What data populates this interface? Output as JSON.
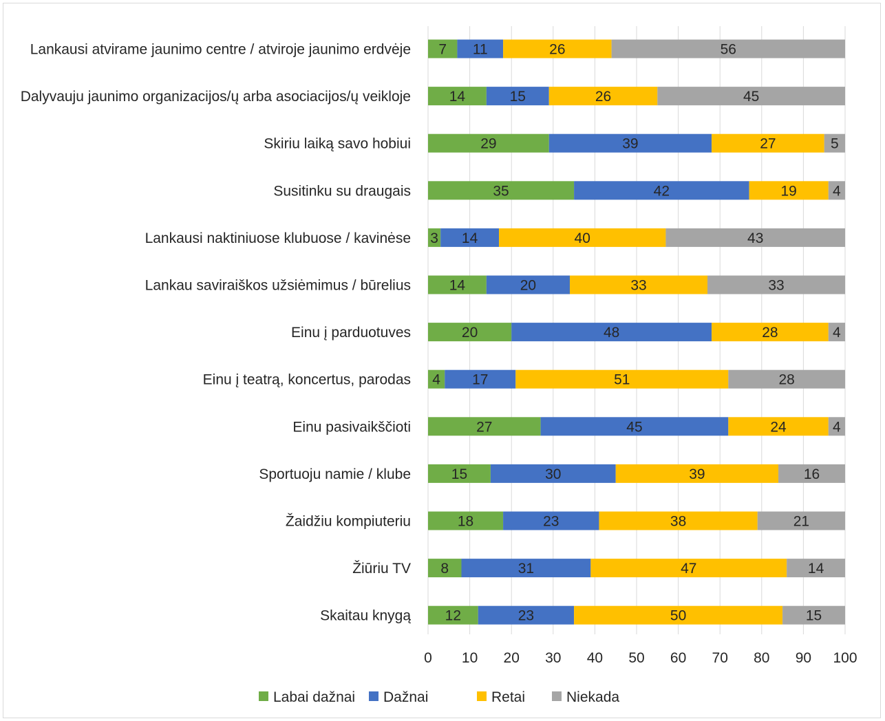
{
  "colors": {
    "Labai dažnai": "#70ad47",
    "Dažnai": "#4472c4",
    "Retai": "#ffc000",
    "Niekada": "#a5a5a5",
    "gridline": "#d9d9d9",
    "text": "#262626"
  },
  "chart_data": {
    "type": "bar",
    "orientation": "horizontal",
    "stacked": true,
    "title": "",
    "xlabel": "",
    "ylabel": "",
    "xlim": [
      0,
      100
    ],
    "xticks": [
      "0",
      "10",
      "20",
      "30",
      "40",
      "50",
      "60",
      "70",
      "80",
      "90",
      "100"
    ],
    "grid": "vertical",
    "legend_position": "bottom",
    "categories": [
      "Lankausi atvirame jaunimo centre / atviroje jaunimo erdvėje",
      "Dalyvauju jaunimo organizacijos/ų arba asociacijos/ų veikloje",
      "Skiriu laiką savo hobiui",
      "Susitinku su draugais",
      "Lankausi naktiniuose klubuose / kavinėse",
      "Lankau saviraiškos užsiėmimus / būrelius",
      "Einu į parduotuves",
      "Einu į teatrą, koncertus, parodas",
      "Einu pasivaikščioti",
      "Sportuoju namie / klube",
      "Žaidžiu kompiuteriu",
      "Žiūriu TV",
      "Skaitau knygą"
    ],
    "series": [
      {
        "name": "Labai dažnai",
        "values": [
          7,
          14,
          29,
          35,
          3,
          14,
          20,
          4,
          27,
          15,
          18,
          8,
          12
        ]
      },
      {
        "name": "Dažnai",
        "values": [
          11,
          15,
          39,
          42,
          14,
          20,
          48,
          17,
          45,
          30,
          23,
          31,
          23
        ]
      },
      {
        "name": "Retai",
        "values": [
          26,
          26,
          27,
          19,
          40,
          33,
          28,
          51,
          24,
          39,
          38,
          47,
          50
        ]
      },
      {
        "name": "Niekada",
        "values": [
          56,
          45,
          5,
          4,
          43,
          33,
          4,
          28,
          4,
          16,
          21,
          14,
          15
        ]
      }
    ]
  }
}
